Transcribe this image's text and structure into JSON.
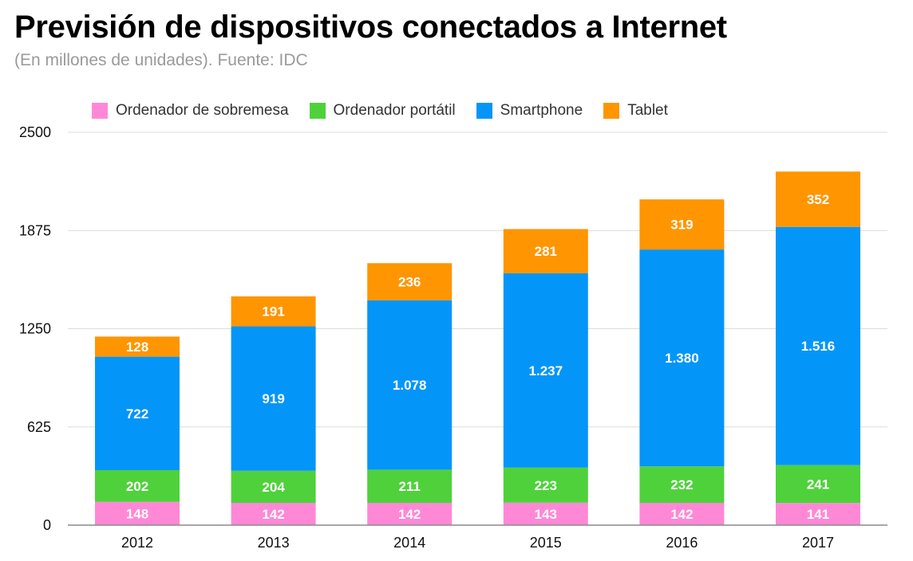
{
  "title": "Previsión de dispositivos conectados a Internet",
  "subtitle": "(En millones de unidades). Fuente: IDC",
  "chart_data": {
    "type": "bar",
    "stacked": true,
    "title": "Previsión de dispositivos conectados a Internet",
    "subtitle": "(En millones de unidades). Fuente: IDC",
    "categories": [
      "2012",
      "2013",
      "2014",
      "2015",
      "2016",
      "2017"
    ],
    "ylim": [
      0,
      2500
    ],
    "yticks": [
      0,
      625,
      1250,
      1875,
      2500
    ],
    "ytick_labels": [
      "0",
      "625",
      "1250",
      "1875",
      "2500"
    ],
    "grid": true,
    "legend_position": "top-left",
    "series": [
      {
        "name": "Ordenador de sobremesa",
        "color": "#ff88d6",
        "values": [
          148,
          142,
          142,
          143,
          142,
          141
        ],
        "labels": [
          "148",
          "142",
          "142",
          "143",
          "142",
          "141"
        ]
      },
      {
        "name": "Ordenador portátil",
        "color": "#4fd13c",
        "values": [
          202,
          204,
          211,
          223,
          232,
          241
        ],
        "labels": [
          "202",
          "204",
          "211",
          "223",
          "232",
          "241"
        ]
      },
      {
        "name": "Smartphone",
        "color": "#0495f9",
        "values": [
          722,
          919,
          1078,
          1237,
          1380,
          1516
        ],
        "labels": [
          "722",
          "919",
          "1.078",
          "1.237",
          "1.380",
          "1.516"
        ]
      },
      {
        "name": "Tablet",
        "color": "#ff9500",
        "values": [
          128,
          191,
          236,
          281,
          319,
          352
        ],
        "labels": [
          "128",
          "191",
          "236",
          "281",
          "319",
          "352"
        ]
      }
    ]
  }
}
